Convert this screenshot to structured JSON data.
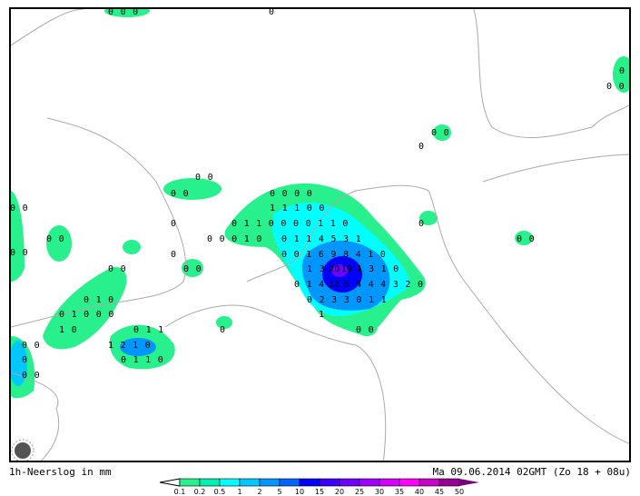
{
  "footer": {
    "title": "1h-Neerslog in mm",
    "valid_time": "Ma 09.06.2014 02GMT (Zo 18 + 08u)"
  },
  "legend": {
    "labels": [
      "0.1",
      "0.2",
      "0.5",
      "1",
      "2",
      "5",
      "10",
      "15",
      "20",
      "25",
      "30",
      "35",
      "40",
      "45",
      "50"
    ],
    "colors": [
      "#28f08c",
      "#00f0b4",
      "#00ffff",
      "#00c8ff",
      "#0096ff",
      "#0064ff",
      "#0000ff",
      "#3c00ff",
      "#6e00ff",
      "#a000ff",
      "#d200ff",
      "#ff00ff",
      "#c800c8",
      "#960096"
    ],
    "over_color": "#780078"
  },
  "map_labels": [
    "0 0 0",
    "0",
    "0",
    "0 0",
    "0 0",
    "0",
    "0 0",
    "0 0",
    "0 0 0 0",
    "0 0",
    "1 1 1 0 0",
    "0",
    "0 1 1 0 0 0 0 1 1 0",
    "0",
    "0 0",
    "0 0 0 1 0",
    "0 1 1 4 5 3 1",
    "0 0",
    "0",
    "0 0 1 6 9 8 4 1 0",
    "0 0",
    "0 0",
    "0 0",
    "1 3 20 19 4 3 1 0",
    "0 1 0",
    "0 1 4 12 6 4 4 4 3 2 0",
    "0 2 3 3 0 1 1",
    "0 1 0 0 0",
    "1",
    "1 0",
    "0 1 1",
    "0",
    "0 0",
    "0 0",
    "1 2 1 0",
    "0 1 1 0",
    "0",
    "0 0"
  ],
  "icons": {
    "logo": "sun-logo-icon"
  }
}
